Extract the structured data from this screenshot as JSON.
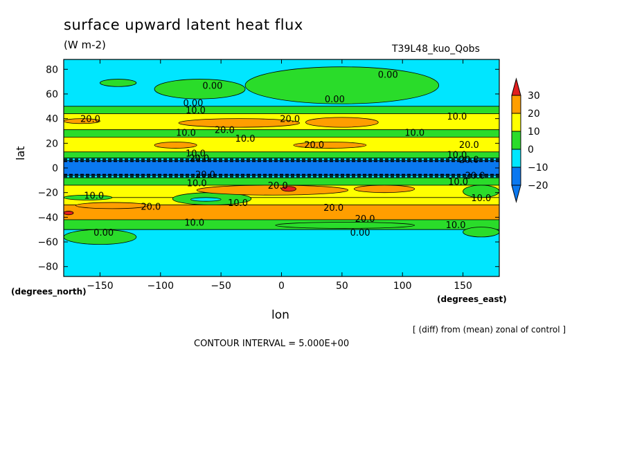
{
  "chart_data": {
    "type": "heatmap",
    "title": "surface upward latent heat flux",
    "units": "(W m-2)",
    "run_label": "T39L48_kuo_Qobs",
    "xlabel": "lon",
    "ylabel": "lat",
    "x_unit_note": "(degrees_east)",
    "y_unit_note": "(degrees_north)",
    "note": "[ (diff) from (mean) zonal of control ]",
    "contour_interval_text": "CONTOUR INTERVAL = 5.000E+00",
    "xlim": [
      -180,
      180
    ],
    "ylim": [
      -88,
      88
    ],
    "x_ticks": [
      -150,
      -100,
      -50,
      0,
      50,
      100,
      150
    ],
    "x_tick_labels": [
      "−150",
      "−100",
      "−50",
      "0",
      "50",
      "100",
      "150"
    ],
    "y_ticks": [
      80,
      60,
      40,
      20,
      0,
      -20,
      -40,
      -60,
      -80
    ],
    "y_tick_labels": [
      "80",
      "60",
      "40",
      "20",
      "0",
      "−20",
      "−40",
      "−60",
      "−80"
    ],
    "colorbar": {
      "levels": [
        -20,
        -10,
        0,
        10,
        20,
        30
      ],
      "level_labels": [
        "−20",
        "−10",
        "0",
        "10",
        "20",
        "30"
      ],
      "colors": [
        "#0a78f0",
        "#00e6ff",
        "#2adc2a",
        "#ffff00",
        "#ff9e00",
        "#e11e1e"
      ]
    },
    "bands": [
      {
        "lat_top": 88,
        "lat_bottom": 50,
        "value": -5,
        "color": "#00e6ff"
      },
      {
        "lat_top": 50,
        "lat_bottom": 44,
        "value": 5,
        "color": "#2adc2a"
      },
      {
        "lat_top": 44,
        "lat_bottom": 31,
        "value": 15,
        "color": "#ffff00"
      },
      {
        "lat_top": 31,
        "lat_bottom": 25,
        "value": 5,
        "color": "#2adc2a"
      },
      {
        "lat_top": 25,
        "lat_bottom": 13,
        "value": 15,
        "color": "#ffff00"
      },
      {
        "lat_top": 13,
        "lat_bottom": 8,
        "value": 5,
        "color": "#2adc2a"
      },
      {
        "lat_top": 8,
        "lat_bottom": 6,
        "value": -5,
        "color": "#00e6ff"
      },
      {
        "lat_top": 6,
        "lat_bottom": -6,
        "value": -25,
        "color": "#0a78f0"
      },
      {
        "lat_top": -6,
        "lat_bottom": -8,
        "value": -5,
        "color": "#00e6ff"
      },
      {
        "lat_top": -8,
        "lat_bottom": -14,
        "value": 5,
        "color": "#2adc2a"
      },
      {
        "lat_top": -14,
        "lat_bottom": -24,
        "value": 15,
        "color": "#ffff00"
      },
      {
        "lat_top": -24,
        "lat_bottom": -30,
        "value": 15,
        "color": "#ffff00"
      },
      {
        "lat_top": -30,
        "lat_bottom": -42,
        "value": 25,
        "color": "#ff9e00"
      },
      {
        "lat_top": -42,
        "lat_bottom": -50,
        "value": 5,
        "color": "#2adc2a"
      },
      {
        "lat_top": -50,
        "lat_bottom": -88,
        "value": -5,
        "color": "#00e6ff"
      }
    ],
    "blobs": [
      {
        "lon": [
          -150,
          -120
        ],
        "lat": [
          72,
          66
        ],
        "value": 5,
        "color": "#2adc2a"
      },
      {
        "lon": [
          -105,
          -30
        ],
        "lat": [
          72,
          56
        ],
        "value": 5,
        "color": "#2adc2a"
      },
      {
        "lon": [
          -30,
          130
        ],
        "lat": [
          82,
          52
        ],
        "value": 5,
        "color": "#2adc2a"
      },
      {
        "lon": [
          -180,
          -150
        ],
        "lat": [
          40,
          36
        ],
        "value": 25,
        "color": "#ff9e00"
      },
      {
        "lon": [
          -85,
          15
        ],
        "lat": [
          40,
          33
        ],
        "value": 25,
        "color": "#ff9e00"
      },
      {
        "lon": [
          20,
          80
        ],
        "lat": [
          41,
          33
        ],
        "value": 25,
        "color": "#ff9e00"
      },
      {
        "lon": [
          -105,
          -70
        ],
        "lat": [
          21,
          16
        ],
        "value": 25,
        "color": "#ff9e00"
      },
      {
        "lon": [
          10,
          70
        ],
        "lat": [
          21,
          16
        ],
        "value": 25,
        "color": "#ff9e00"
      },
      {
        "lon": [
          150,
          180
        ],
        "lat": [
          -14,
          -24
        ],
        "value": 5,
        "color": "#2adc2a"
      },
      {
        "lon": [
          -180,
          -140
        ],
        "lat": [
          -22,
          -26
        ],
        "value": 5,
        "color": "#2adc2a"
      },
      {
        "lon": [
          -90,
          -25
        ],
        "lat": [
          -20,
          -30
        ],
        "value": 5,
        "color": "#2adc2a"
      },
      {
        "lon": [
          -170,
          -110
        ],
        "lat": [
          -28,
          -33
        ],
        "value": 25,
        "color": "#ff9e00"
      },
      {
        "lon": [
          -70,
          55
        ],
        "lat": [
          -14,
          -22
        ],
        "value": 25,
        "color": "#ff9e00"
      },
      {
        "lon": [
          60,
          110
        ],
        "lat": [
          -14,
          -20
        ],
        "value": 25,
        "color": "#ff9e00"
      },
      {
        "lon": [
          -180,
          -120
        ],
        "lat": [
          -50,
          -62
        ],
        "value": 5,
        "color": "#2adc2a"
      },
      {
        "lon": [
          -5,
          110
        ],
        "lat": [
          -44,
          -49
        ],
        "value": 5,
        "color": "#2adc2a"
      },
      {
        "lon": [
          150,
          180
        ],
        "lat": [
          -48,
          -56
        ],
        "value": 5,
        "color": "#2adc2a"
      },
      {
        "lon": [
          -75,
          -50
        ],
        "lat": [
          -24,
          -27
        ],
        "value": -5,
        "color": "#00e6ff"
      },
      {
        "lon": [
          -180,
          -172
        ],
        "lat": [
          -35,
          -38
        ],
        "value": 35,
        "color": "#e11e1e"
      },
      {
        "lon": [
          0,
          12
        ],
        "lat": [
          -15,
          -19
        ],
        "value": 35,
        "color": "#e11e1e"
      }
    ],
    "contour_labels": [
      {
        "lon": 88,
        "lat": 76,
        "text": "0.00"
      },
      {
        "lon": -57,
        "lat": 67,
        "text": "0.00"
      },
      {
        "lon": 44,
        "lat": 56,
        "text": "0.00"
      },
      {
        "lon": -73,
        "lat": 53,
        "text": "0.00"
      },
      {
        "lon": -71,
        "lat": 47,
        "text": "10.0"
      },
      {
        "lon": -158,
        "lat": 40,
        "text": "20.0"
      },
      {
        "lon": 7,
        "lat": 40,
        "text": "20.0"
      },
      {
        "lon": 145,
        "lat": 42,
        "text": "10.0"
      },
      {
        "lon": -47,
        "lat": 31,
        "text": "20.0"
      },
      {
        "lon": -79,
        "lat": 29,
        "text": "10.0"
      },
      {
        "lon": -30,
        "lat": 24,
        "text": "10.0"
      },
      {
        "lon": 110,
        "lat": 29,
        "text": "10.0"
      },
      {
        "lon": 27,
        "lat": 19,
        "text": "20.0"
      },
      {
        "lon": 155,
        "lat": 19,
        "text": "20.0"
      },
      {
        "lon": -71,
        "lat": 12,
        "text": "10.0"
      },
      {
        "lon": -68,
        "lat": 8,
        "text": "20.0"
      },
      {
        "lon": 145,
        "lat": 11,
        "text": "10.0"
      },
      {
        "lon": 155,
        "lat": 7,
        "text": "20.0"
      },
      {
        "lon": -63,
        "lat": -5,
        "text": "20.0"
      },
      {
        "lon": -70,
        "lat": -12,
        "text": "10.0"
      },
      {
        "lon": -3,
        "lat": -14,
        "text": "20.0"
      },
      {
        "lon": 146,
        "lat": -11,
        "text": "10.0"
      },
      {
        "lon": 160,
        "lat": -6,
        "text": "20.0"
      },
      {
        "lon": -155,
        "lat": -22,
        "text": "10.0"
      },
      {
        "lon": 165,
        "lat": -24,
        "text": "10.0"
      },
      {
        "lon": -108,
        "lat": -31,
        "text": "20.0"
      },
      {
        "lon": -36,
        "lat": -28,
        "text": "10.0"
      },
      {
        "lon": 43,
        "lat": -32,
        "text": "20.0"
      },
      {
        "lon": 69,
        "lat": -41,
        "text": "20.0"
      },
      {
        "lon": -72,
        "lat": -44,
        "text": "10.0"
      },
      {
        "lon": 144,
        "lat": -46,
        "text": "10.0"
      },
      {
        "lon": -147,
        "lat": -52,
        "text": "0.00"
      },
      {
        "lon": 65,
        "lat": -52,
        "text": "0.00"
      }
    ]
  }
}
